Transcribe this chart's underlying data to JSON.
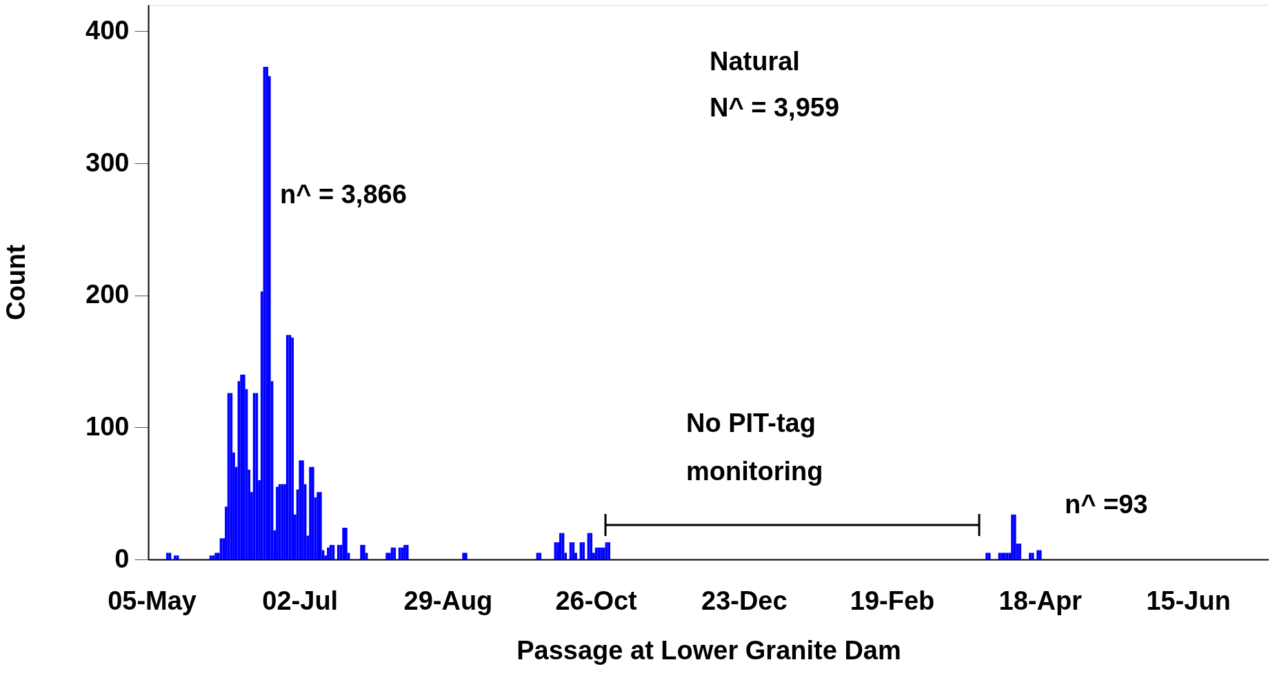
{
  "chart_data": {
    "type": "bar",
    "xlabel": "Passage at Lower Granite Dam",
    "ylabel": "Count",
    "ylim": [
      0,
      420
    ],
    "yticks": [
      0,
      100,
      200,
      300,
      400
    ],
    "grid": false,
    "annotations": [
      "Natural",
      "N^ = 3,959",
      "n^ = 3,866",
      "No PIT-tag\nmonitoring",
      "n^ =93"
    ],
    "categories": [
      null,
      "05-May",
      null,
      null,
      null,
      null,
      null,
      null,
      null,
      null,
      null,
      null,
      null,
      null,
      null,
      null,
      null,
      null,
      null,
      null,
      null,
      null,
      null,
      null,
      null,
      null,
      null,
      null,
      null,
      null,
      null,
      null,
      null,
      null,
      null,
      null,
      null,
      null,
      null,
      null,
      null,
      null,
      null,
      null,
      null,
      null,
      null,
      null,
      null,
      null,
      null,
      null,
      null,
      null,
      null,
      null,
      null,
      null,
      null,
      "02-Jul",
      null,
      null,
      null,
      null,
      null,
      null,
      null,
      null,
      null,
      null,
      null,
      null,
      null,
      null,
      null,
      null,
      null,
      null,
      null,
      null,
      null,
      null,
      null,
      null,
      null,
      null,
      null,
      null,
      null,
      null,
      null,
      null,
      null,
      null,
      null,
      null,
      null,
      null,
      null,
      null,
      null,
      null,
      null,
      null,
      null,
      null,
      null,
      null,
      null,
      null,
      null,
      null,
      null,
      null,
      null,
      null,
      null,
      "29-Aug",
      null,
      null,
      null,
      null,
      null,
      null,
      null,
      null,
      null,
      null,
      null,
      null,
      null,
      null,
      null,
      null,
      null,
      null,
      null,
      null,
      null,
      null,
      null,
      null,
      null,
      null,
      null,
      null,
      null,
      null,
      null,
      null,
      null,
      null,
      null,
      null,
      null,
      null,
      null,
      null,
      null,
      null,
      null,
      null,
      null,
      null,
      null,
      null,
      null,
      null,
      null,
      null,
      null,
      null,
      null,
      null,
      null,
      "26-Oct",
      null,
      null,
      null,
      null,
      null,
      null,
      null,
      null,
      null,
      null,
      null,
      null,
      null,
      null,
      null,
      null,
      null,
      null,
      null,
      null,
      null,
      null,
      null,
      null,
      null,
      null,
      null,
      null,
      null,
      null,
      null,
      null,
      null,
      null,
      null,
      null,
      null,
      null,
      null,
      null,
      null,
      null,
      null,
      null,
      null,
      null,
      null,
      null,
      null,
      null,
      null,
      null,
      null,
      null,
      null,
      null,
      null,
      "23-Dec",
      null,
      null,
      null,
      null,
      null,
      null,
      null,
      null,
      null,
      null,
      null,
      null,
      null,
      null,
      null,
      null,
      null,
      null,
      null,
      null,
      null,
      null,
      null,
      null,
      null,
      null,
      null,
      null,
      null,
      null,
      null,
      null,
      null,
      null,
      null,
      null,
      null,
      null,
      null,
      null,
      null,
      null,
      null,
      null,
      null,
      null,
      null,
      null,
      null,
      null,
      null,
      null,
      null,
      null,
      null,
      null,
      null,
      "19-Feb",
      null,
      null,
      null,
      null,
      null,
      null,
      null,
      null,
      null,
      null,
      null,
      null,
      null,
      null,
      null,
      null,
      null,
      null,
      null,
      null,
      null,
      null,
      null,
      null,
      null,
      null,
      null,
      null,
      null,
      null,
      null,
      null,
      null,
      null,
      null,
      null,
      null,
      null,
      null,
      null,
      null,
      null,
      null,
      null,
      null,
      null,
      null,
      null,
      null,
      null,
      null,
      null,
      null,
      null,
      null,
      null,
      null,
      "18-Apr",
      null,
      null,
      null,
      null,
      null,
      null,
      null,
      null,
      null,
      null,
      null,
      null,
      null,
      null,
      null,
      null,
      null,
      null,
      null,
      null,
      null,
      null,
      null,
      null,
      null,
      null,
      null,
      null,
      null,
      null,
      null,
      null,
      null,
      null,
      null,
      null,
      null,
      null,
      null,
      null,
      null,
      null,
      null,
      null,
      null,
      null,
      null,
      null,
      null,
      null,
      null,
      null,
      null,
      null,
      null,
      null,
      null,
      "15-Jun",
      null,
      null,
      null,
      null,
      null,
      null,
      null,
      null,
      null,
      null,
      null,
      null,
      null,
      null,
      null,
      null,
      null,
      null,
      null,
      null,
      null,
      null,
      null,
      null,
      null,
      null,
      null,
      null,
      null,
      null,
      null
    ],
    "series": [
      {
        "color": "#0000ff",
        "values": [
          null,
          null,
          0,
          0,
          0,
          0,
          0,
          5,
          5,
          0,
          3,
          3,
          0,
          0,
          0,
          0,
          0,
          0,
          0,
          0,
          0,
          0,
          0,
          0,
          3,
          3,
          5,
          5,
          16,
          16,
          40,
          126,
          126,
          81,
          70,
          135,
          140,
          140,
          129,
          68,
          51,
          126,
          126,
          60,
          203,
          373,
          373,
          366,
          135,
          22,
          55,
          57,
          57,
          57,
          170,
          170,
          168,
          34,
          53,
          75,
          75,
          57,
          18,
          70,
          70,
          47,
          51,
          51,
          7,
          3,
          9,
          11,
          11,
          0,
          11,
          11,
          24,
          24,
          5,
          0,
          0,
          0,
          0,
          11,
          11,
          5,
          0,
          0,
          0,
          0,
          0,
          0,
          0,
          5,
          5,
          9,
          9,
          0,
          9,
          9,
          11,
          11,
          0,
          0,
          0,
          0,
          0,
          0,
          0,
          0,
          0,
          0,
          0,
          0,
          0,
          0,
          0,
          0,
          0,
          0,
          0,
          0,
          0,
          5,
          5,
          0,
          0,
          0,
          0,
          0,
          0,
          0,
          0,
          0,
          0,
          0,
          0,
          0,
          0,
          0,
          0,
          0,
          0,
          0,
          0,
          0,
          0,
          0,
          0,
          0,
          0,
          0,
          5,
          5,
          0,
          0,
          0,
          0,
          0,
          13,
          13,
          20,
          20,
          5,
          0,
          13,
          13,
          5,
          0,
          13,
          13,
          0,
          20,
          20,
          5,
          9,
          9,
          9,
          9,
          13,
          13,
          null,
          null,
          null,
          null,
          null,
          null,
          null,
          null,
          null,
          null,
          null,
          null,
          null,
          null,
          null,
          null,
          null,
          null,
          null,
          null,
          null,
          null,
          null,
          null,
          null,
          null,
          null,
          null,
          null,
          null,
          null,
          null,
          null,
          null,
          null,
          null,
          null,
          null,
          null,
          null,
          null,
          null,
          null,
          null,
          null,
          null,
          null,
          null,
          null,
          null,
          null,
          null,
          null,
          null,
          null,
          null,
          null,
          null,
          null,
          null,
          null,
          null,
          null,
          null,
          null,
          null,
          null,
          null,
          null,
          null,
          null,
          null,
          null,
          null,
          null,
          null,
          null,
          null,
          null,
          null,
          null,
          null,
          null,
          null,
          null,
          null,
          null,
          null,
          null,
          null,
          null,
          null,
          null,
          null,
          null,
          null,
          null,
          null,
          null,
          null,
          null,
          null,
          null,
          null,
          null,
          null,
          null,
          null,
          null,
          null,
          null,
          null,
          null,
          null,
          null,
          null,
          null,
          null,
          null,
          null,
          null,
          null,
          null,
          null,
          null,
          null,
          null,
          null,
          null,
          null,
          null,
          null,
          null,
          null,
          null,
          null,
          null,
          null,
          null,
          null,
          null,
          null,
          null,
          null,
          null,
          0,
          0,
          5,
          5,
          0,
          0,
          0,
          5,
          5,
          5,
          5,
          5,
          34,
          34,
          12,
          12,
          0,
          0,
          0,
          5,
          5,
          0,
          7,
          7,
          0,
          0,
          0,
          0,
          0,
          0,
          0,
          0,
          0,
          0,
          0,
          0,
          0,
          0,
          0,
          0,
          0,
          0,
          0,
          0,
          0,
          0,
          0,
          0,
          0,
          0,
          0,
          0,
          0,
          0,
          0,
          0,
          0,
          0,
          0,
          0,
          0,
          0,
          0,
          0,
          0,
          0,
          0,
          0,
          0,
          0,
          0,
          0,
          0,
          0,
          0,
          0,
          0,
          0,
          0,
          0,
          0,
          0,
          0,
          0,
          0,
          0,
          0,
          0,
          0,
          null,
          null,
          null,
          null,
          null,
          null,
          null,
          null,
          null,
          null,
          null,
          null,
          null,
          null,
          null,
          null,
          null,
          null,
          null,
          null,
          null,
          null,
          null,
          null
        ]
      }
    ]
  }
}
